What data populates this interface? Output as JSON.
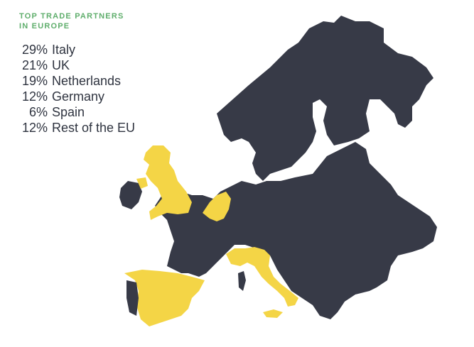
{
  "header": {
    "title_line1": "TOP TRADE PARTNERS",
    "title_line2": "IN EUROPE"
  },
  "partners": [
    {
      "percent": "29%",
      "name": "Italy"
    },
    {
      "percent": "21%",
      "name": "UK"
    },
    {
      "percent": "19%",
      "name": "Netherlands"
    },
    {
      "percent": "12%",
      "name": "Germany"
    },
    {
      "percent": "6%",
      "name": "Spain"
    },
    {
      "percent": "12%",
      "name": "Rest of the EU"
    }
  ],
  "colors": {
    "title": "#5fae6c",
    "text": "#2f3440",
    "highlight_countries": "#f4d546",
    "other_countries": "#373a47"
  },
  "map": {
    "highlighted_regions": [
      "UK",
      "Netherlands",
      "Spain",
      "Italy"
    ]
  }
}
